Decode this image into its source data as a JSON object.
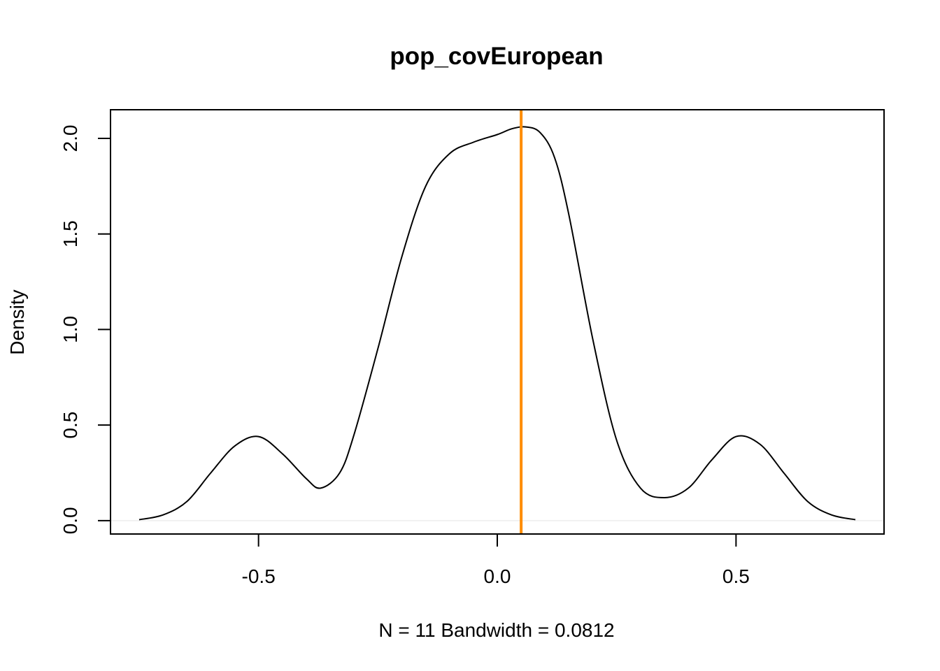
{
  "chart_data": {
    "type": "line",
    "title": "pop_covEuropean",
    "xlabel": "N = 11   Bandwidth = 0.0812",
    "ylabel": "Density",
    "xlim": [
      -0.81,
      0.81
    ],
    "ylim": [
      -0.07,
      2.15
    ],
    "x_ticks": [
      -0.5,
      0.0,
      0.5
    ],
    "x_tick_labels": [
      "-0.5",
      "0.0",
      "0.5"
    ],
    "y_ticks": [
      0.0,
      0.5,
      1.0,
      1.5,
      2.0
    ],
    "y_tick_labels": [
      "0.0",
      "0.5",
      "1.0",
      "1.5",
      "2.0"
    ],
    "grid": false,
    "series": [
      {
        "color": "#000000",
        "x": [
          -0.75,
          -0.7,
          -0.65,
          -0.6,
          -0.55,
          -0.5,
          -0.45,
          -0.4,
          -0.37,
          -0.33,
          -0.3,
          -0.25,
          -0.2,
          -0.15,
          -0.1,
          -0.05,
          0.0,
          0.03,
          0.06,
          0.09,
          0.12,
          0.15,
          0.2,
          0.25,
          0.3,
          0.35,
          0.4,
          0.45,
          0.5,
          0.55,
          0.6,
          0.65,
          0.7,
          0.75
        ],
        "y": [
          0.005,
          0.03,
          0.1,
          0.25,
          0.39,
          0.44,
          0.35,
          0.22,
          0.17,
          0.25,
          0.45,
          0.9,
          1.38,
          1.75,
          1.92,
          1.98,
          2.02,
          2.05,
          2.06,
          2.03,
          1.9,
          1.6,
          0.95,
          0.42,
          0.17,
          0.12,
          0.17,
          0.32,
          0.44,
          0.4,
          0.25,
          0.1,
          0.03,
          0.005
        ]
      }
    ],
    "reference_line": {
      "orientation": "vertical",
      "x": 0.05,
      "color": "#ff8c00"
    },
    "zero_line": {
      "y": 0.0,
      "color": "#eeeeee"
    }
  }
}
